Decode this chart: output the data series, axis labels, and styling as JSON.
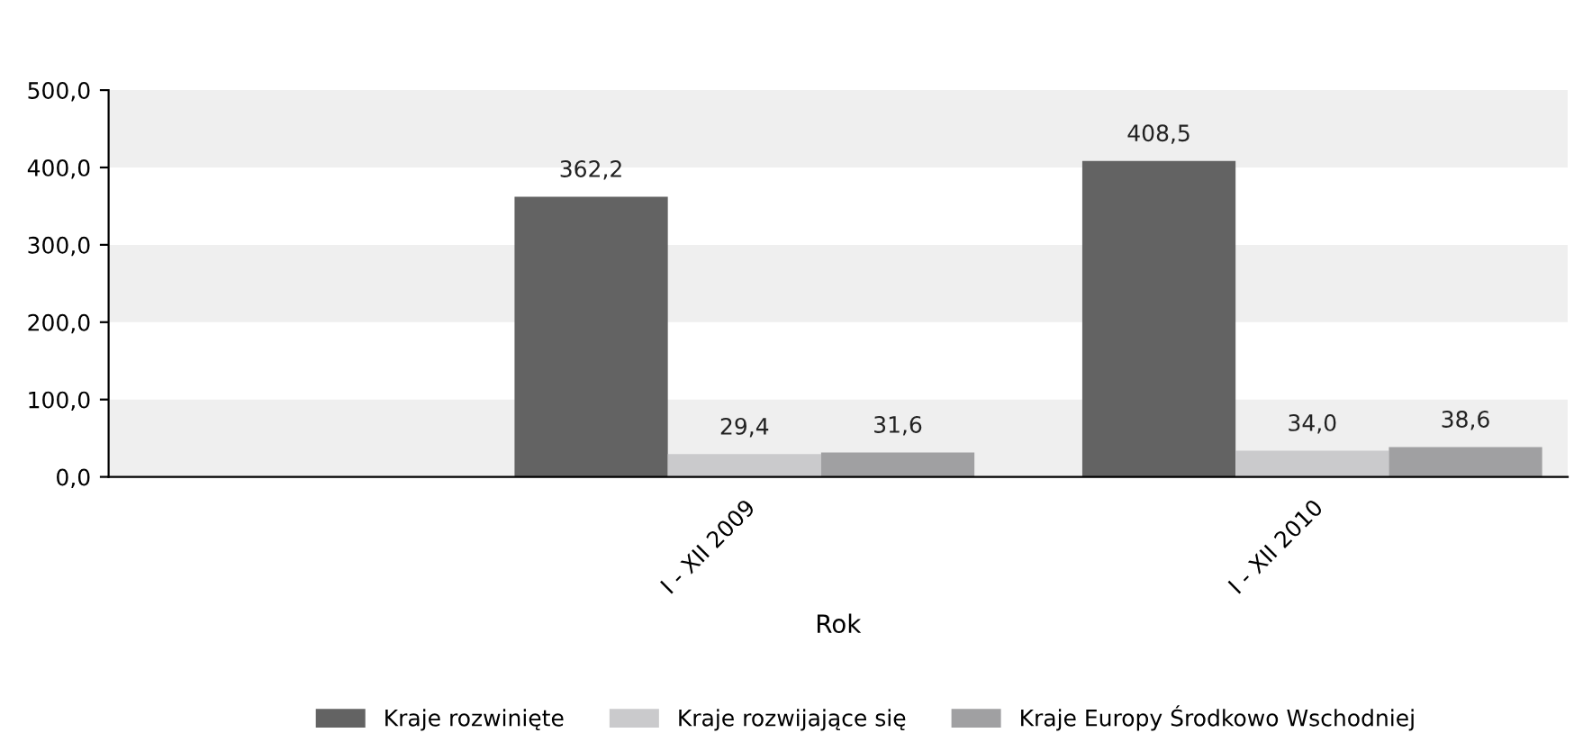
{
  "chart_data": {
    "type": "bar",
    "xlabel": "Rok",
    "categories": [
      "I - XII 2009",
      "I - XII 2010"
    ],
    "series": [
      {
        "name": "Kraje rozwinięte",
        "color": "#636363",
        "values": [
          362.2,
          408.5
        ],
        "value_labels": [
          "362,2",
          "408,5"
        ]
      },
      {
        "name": "Kraje rozwijające się",
        "color": "#cacacc",
        "values": [
          29.4,
          34.0
        ],
        "value_labels": [
          "29,4",
          "34,0"
        ]
      },
      {
        "name": "Kraje Europy Środkowo Wschodniej",
        "color": "#a0a0a2",
        "values": [
          31.6,
          38.6
        ],
        "value_labels": [
          "31,6",
          "38,6"
        ]
      }
    ],
    "ylim": [
      0,
      500
    ],
    "yticks": [
      {
        "value": 0,
        "label": "0,0"
      },
      {
        "value": 100,
        "label": "100,0"
      },
      {
        "value": 200,
        "label": "200,0"
      },
      {
        "value": 300,
        "label": "300,0"
      },
      {
        "value": 400,
        "label": "400,0"
      },
      {
        "value": 500,
        "label": "500,0"
      }
    ],
    "bands": [
      {
        "axis": "y",
        "from": 0,
        "to": 100,
        "color": "#efefef"
      },
      {
        "axis": "y",
        "from": 200,
        "to": 300,
        "color": "#efefef"
      },
      {
        "axis": "y",
        "from": 400,
        "to": 500,
        "color": "#efefef"
      }
    ],
    "grid": false,
    "legend": "bottom"
  }
}
